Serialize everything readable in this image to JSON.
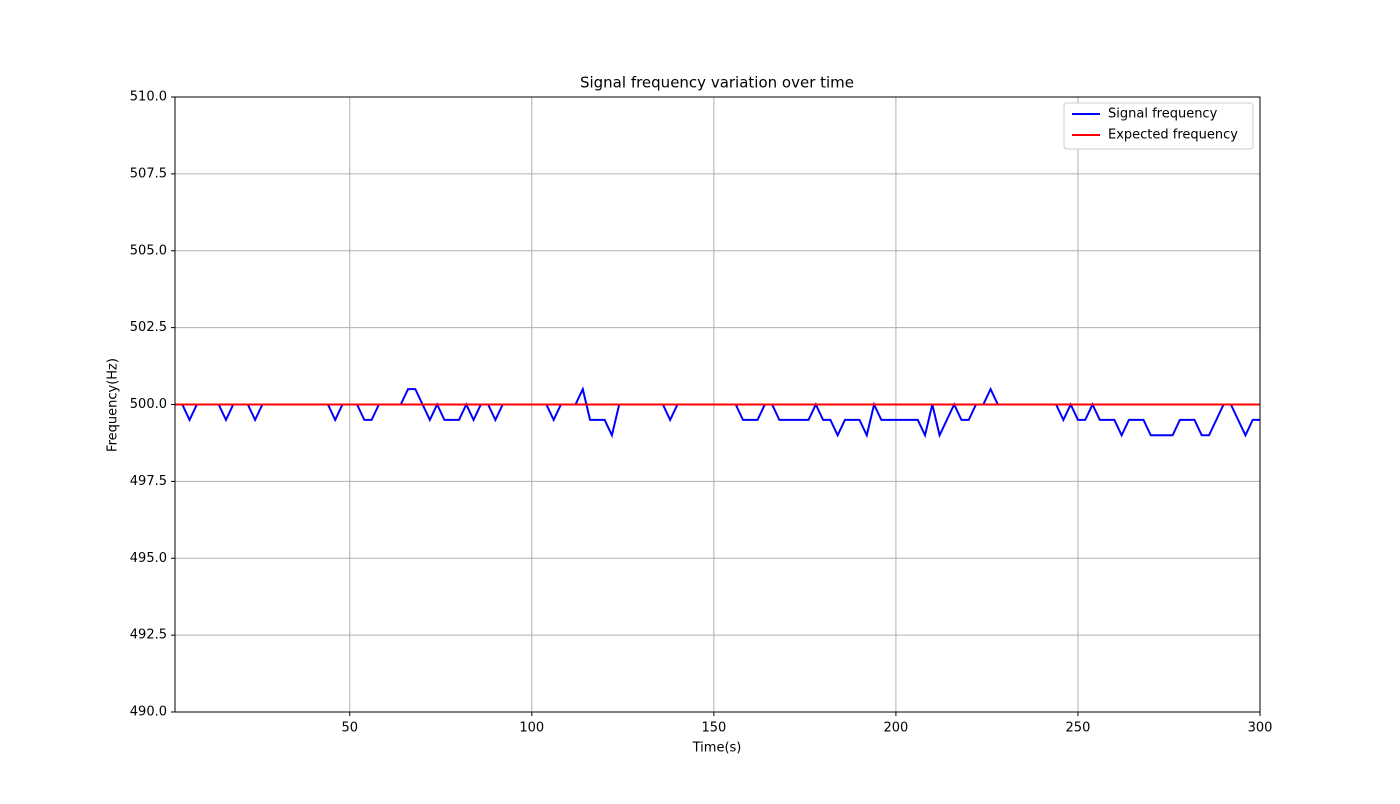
{
  "chart_data": {
    "type": "line",
    "title": "Signal frequency variation over time",
    "x_label": "Time(s)",
    "y_label": "Frequency(Hz)",
    "xlim": [
      2,
      300
    ],
    "ylim": [
      490,
      510
    ],
    "xticks": [
      50,
      100,
      150,
      200,
      250,
      300
    ],
    "yticks": [
      {
        "value": 490,
        "label": "490.0"
      },
      {
        "value": 492.5,
        "label": "492.5"
      },
      {
        "value": 495,
        "label": "495.0"
      },
      {
        "value": 497.5,
        "label": "497.5"
      },
      {
        "value": 500,
        "label": "500.0"
      },
      {
        "value": 502.5,
        "label": "502.5"
      },
      {
        "value": 505,
        "label": "505.0"
      },
      {
        "value": 507.5,
        "label": "507.5"
      },
      {
        "value": 510,
        "label": "510.0"
      }
    ],
    "grid": true,
    "legend": "upper right",
    "series": [
      {
        "name": "Signal frequency",
        "color": "#0000ff",
        "x": [
          2,
          4,
          6,
          8,
          10,
          12,
          14,
          16,
          18,
          20,
          22,
          24,
          26,
          28,
          30,
          32,
          34,
          36,
          38,
          40,
          42,
          44,
          46,
          48,
          50,
          52,
          54,
          56,
          58,
          60,
          62,
          64,
          66,
          68,
          70,
          72,
          74,
          76,
          78,
          80,
          82,
          84,
          86,
          88,
          90,
          92,
          94,
          96,
          98,
          100,
          102,
          104,
          106,
          108,
          110,
          112,
          114,
          116,
          118,
          120,
          122,
          124,
          126,
          128,
          130,
          132,
          134,
          136,
          138,
          140,
          142,
          144,
          146,
          148,
          150,
          152,
          154,
          156,
          158,
          160,
          162,
          164,
          166,
          168,
          170,
          172,
          174,
          176,
          178,
          180,
          182,
          184,
          186,
          188,
          190,
          192,
          194,
          196,
          198,
          200,
          202,
          204,
          206,
          208,
          210,
          212,
          214,
          216,
          218,
          220,
          222,
          224,
          226,
          228,
          230,
          232,
          234,
          236,
          238,
          240,
          242,
          244,
          246,
          248,
          250,
          252,
          254,
          256,
          258,
          260,
          262,
          264,
          266,
          268,
          270,
          272,
          274,
          276,
          278,
          280,
          282,
          284,
          286,
          288,
          290,
          292,
          294,
          296,
          298,
          300
        ],
        "values": [
          500,
          500,
          499.5,
          500,
          500,
          500,
          500,
          499.5,
          500,
          500,
          500,
          499.5,
          500,
          500,
          500,
          500,
          500,
          500,
          500,
          500,
          500,
          500,
          499.5,
          500,
          500,
          500,
          499.5,
          499.5,
          500,
          500,
          500,
          500,
          500.5,
          500.5,
          500,
          499.5,
          500,
          499.5,
          499.5,
          499.5,
          500,
          499.5,
          500,
          500,
          499.5,
          500,
          500,
          500,
          500,
          500,
          500,
          500,
          499.5,
          500,
          500,
          500,
          500.5,
          499.5,
          499.5,
          499.5,
          499,
          500,
          500,
          500,
          500,
          500,
          500,
          500,
          499.5,
          500,
          500,
          500,
          500,
          500,
          500,
          500,
          500,
          500,
          499.5,
          499.5,
          499.5,
          500,
          500,
          499.5,
          499.5,
          499.5,
          499.5,
          499.5,
          500,
          499.5,
          499.5,
          499,
          499.5,
          499.5,
          499.5,
          499,
          500,
          499.5,
          499.5,
          499.5,
          499.5,
          499.5,
          499.5,
          499,
          500,
          499,
          499.5,
          500,
          499.5,
          499.5,
          500,
          500,
          500.5,
          500,
          500,
          500,
          500,
          500,
          500,
          500,
          500,
          500,
          499.5,
          500,
          499.5,
          499.5,
          500,
          499.5,
          499.5,
          499.5,
          499,
          499.5,
          499.5,
          499.5,
          499,
          499,
          499,
          499,
          499.5,
          499.5,
          499.5,
          499,
          499,
          499.5,
          500,
          500,
          499.5,
          499,
          499.5,
          499.5
        ]
      },
      {
        "name": "Expected frequency",
        "color": "#ff0000",
        "x": [
          2,
          300
        ],
        "values": [
          500,
          500
        ]
      }
    ]
  }
}
